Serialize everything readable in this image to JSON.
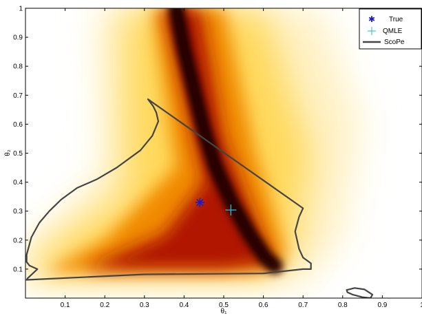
{
  "chart_data": {
    "type": "heatmap",
    "title": "",
    "xlabel": "θ₁",
    "ylabel": "θ₂",
    "xlim": [
      0,
      1
    ],
    "ylim": [
      0,
      1
    ],
    "xticks": [
      "0.1",
      "0.2",
      "0.3",
      "0.4",
      "0.5",
      "0.6",
      "0.7",
      "0.8",
      "0.9",
      "1"
    ],
    "yticks": [
      "0.1",
      "0.2",
      "0.3",
      "0.4",
      "0.5",
      "0.6",
      "0.7",
      "0.8",
      "0.9",
      "1"
    ],
    "xtick_values": [
      0.1,
      0.2,
      0.3,
      0.4,
      0.5,
      0.6,
      0.7,
      0.8,
      0.9,
      1.0
    ],
    "ytick_values": [
      0.1,
      0.2,
      0.3,
      0.4,
      0.5,
      0.6,
      0.7,
      0.8,
      0.9,
      1.0
    ],
    "grid": false,
    "colormap": "hot",
    "legend_position": "top-right",
    "legend": [
      {
        "label": "True",
        "marker": "star",
        "color": "#1a1acc"
      },
      {
        "label": "QMLE",
        "marker": "plus",
        "color": "#22b8c8"
      },
      {
        "label": "ScoPe",
        "marker": "line",
        "color": "#444444"
      }
    ],
    "true_point": {
      "x": 0.44,
      "y": 0.33
    },
    "qmle_point": {
      "x": 0.518,
      "y": 0.304
    },
    "ridge_curve": [
      [
        0.38,
        1.0
      ],
      [
        0.4,
        0.86
      ],
      [
        0.425,
        0.72
      ],
      [
        0.45,
        0.58
      ],
      [
        0.48,
        0.45
      ],
      [
        0.52,
        0.33
      ],
      [
        0.565,
        0.22
      ],
      [
        0.605,
        0.14
      ],
      [
        0.63,
        0.11
      ]
    ],
    "scope_region": [
      [
        0.309,
        0.686
      ],
      [
        0.322,
        0.662
      ],
      [
        0.33,
        0.64
      ],
      [
        0.335,
        0.61
      ],
      [
        0.32,
        0.56
      ],
      [
        0.29,
        0.51
      ],
      [
        0.23,
        0.45
      ],
      [
        0.18,
        0.41
      ],
      [
        0.13,
        0.38
      ],
      [
        0.09,
        0.34
      ],
      [
        0.06,
        0.3
      ],
      [
        0.035,
        0.26
      ],
      [
        0.015,
        0.21
      ],
      [
        0.003,
        0.15
      ],
      [
        0.003,
        0.125
      ],
      [
        0.01,
        0.112
      ],
      [
        0.03,
        0.1
      ],
      [
        0.005,
        0.068
      ],
      [
        0.003,
        0.063
      ],
      [
        0.3,
        0.082
      ],
      [
        0.6,
        0.085
      ],
      [
        0.7,
        0.1
      ],
      [
        0.72,
        0.1
      ],
      [
        0.72,
        0.12
      ],
      [
        0.7,
        0.14
      ],
      [
        0.69,
        0.17
      ],
      [
        0.68,
        0.23
      ],
      [
        0.69,
        0.28
      ],
      [
        0.7,
        0.31
      ],
      [
        0.309,
        0.686
      ]
    ],
    "scope_small_region": [
      [
        0.81,
        0.028
      ],
      [
        0.83,
        0.035
      ],
      [
        0.855,
        0.03
      ],
      [
        0.875,
        0.012
      ],
      [
        0.87,
        0.0
      ],
      [
        0.85,
        0.003
      ],
      [
        0.825,
        0.012
      ],
      [
        0.812,
        0.02
      ],
      [
        0.81,
        0.028
      ]
    ]
  }
}
